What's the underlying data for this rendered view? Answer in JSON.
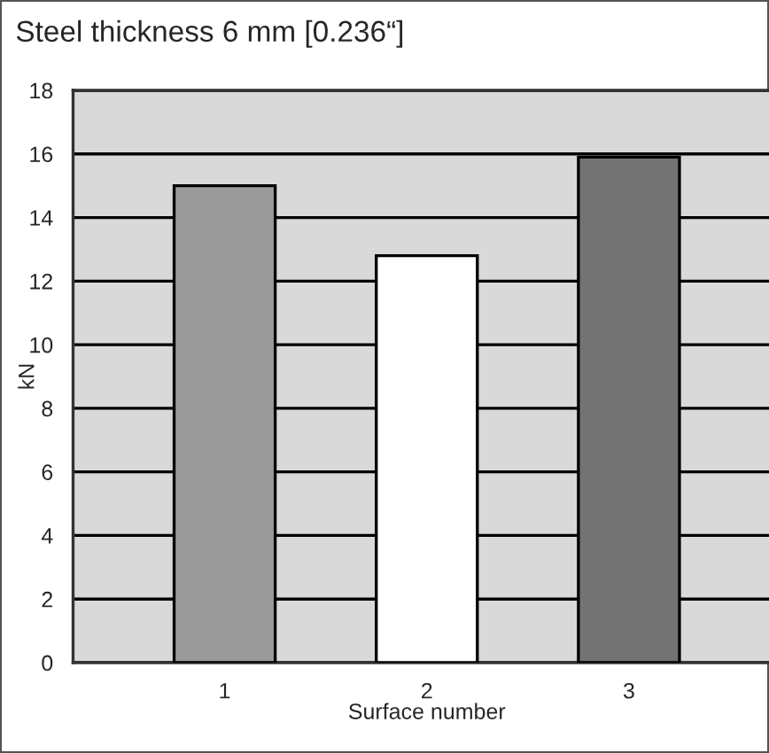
{
  "chart_data": {
    "type": "bar",
    "title": "Steel thickness 6 mm [0.236“]",
    "xlabel": "Surface number",
    "ylabel": "kN",
    "categories": [
      "1",
      "2",
      "3"
    ],
    "values": [
      15,
      12.8,
      15.9
    ],
    "colors": [
      "#9a9a9a",
      "#ffffff",
      "#737373"
    ],
    "ylim": [
      0,
      18
    ],
    "yticks": [
      0,
      2,
      4,
      6,
      8,
      10,
      12,
      14,
      16,
      18
    ],
    "grid": "y",
    "legend": false
  }
}
